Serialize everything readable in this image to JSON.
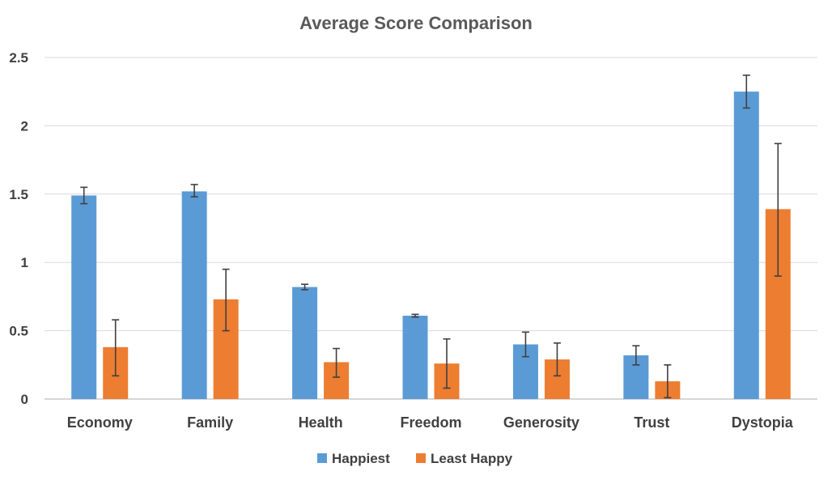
{
  "chart_data": {
    "type": "bar",
    "title": "Average Score Comparison",
    "xlabel": "",
    "ylabel": "",
    "ylim": [
      0,
      2.5
    ],
    "yticks": [
      0,
      0.5,
      1,
      1.5,
      2,
      2.5
    ],
    "ytick_labels": [
      "0",
      "0.5",
      "1",
      "1.5",
      "2",
      "2.5"
    ],
    "grid": true,
    "legend_position": "bottom",
    "categories": [
      "Economy",
      "Family",
      "Health",
      "Freedom",
      "Generosity",
      "Trust",
      "Dystopia"
    ],
    "series": [
      {
        "name": "Happiest",
        "color": "#5b9bd5",
        "values": [
          1.49,
          1.52,
          0.82,
          0.61,
          0.4,
          0.32,
          2.25
        ],
        "error_low": [
          1.43,
          1.48,
          0.8,
          0.6,
          0.31,
          0.25,
          2.13
        ],
        "error_high": [
          1.55,
          1.57,
          0.84,
          0.62,
          0.49,
          0.39,
          2.37
        ]
      },
      {
        "name": "Least Happy",
        "color": "#ed7d31",
        "values": [
          0.38,
          0.73,
          0.27,
          0.26,
          0.29,
          0.13,
          1.39
        ],
        "error_low": [
          0.17,
          0.5,
          0.16,
          0.08,
          0.17,
          0.01,
          0.9
        ],
        "error_high": [
          0.58,
          0.95,
          0.37,
          0.44,
          0.41,
          0.25,
          1.87
        ]
      }
    ]
  }
}
